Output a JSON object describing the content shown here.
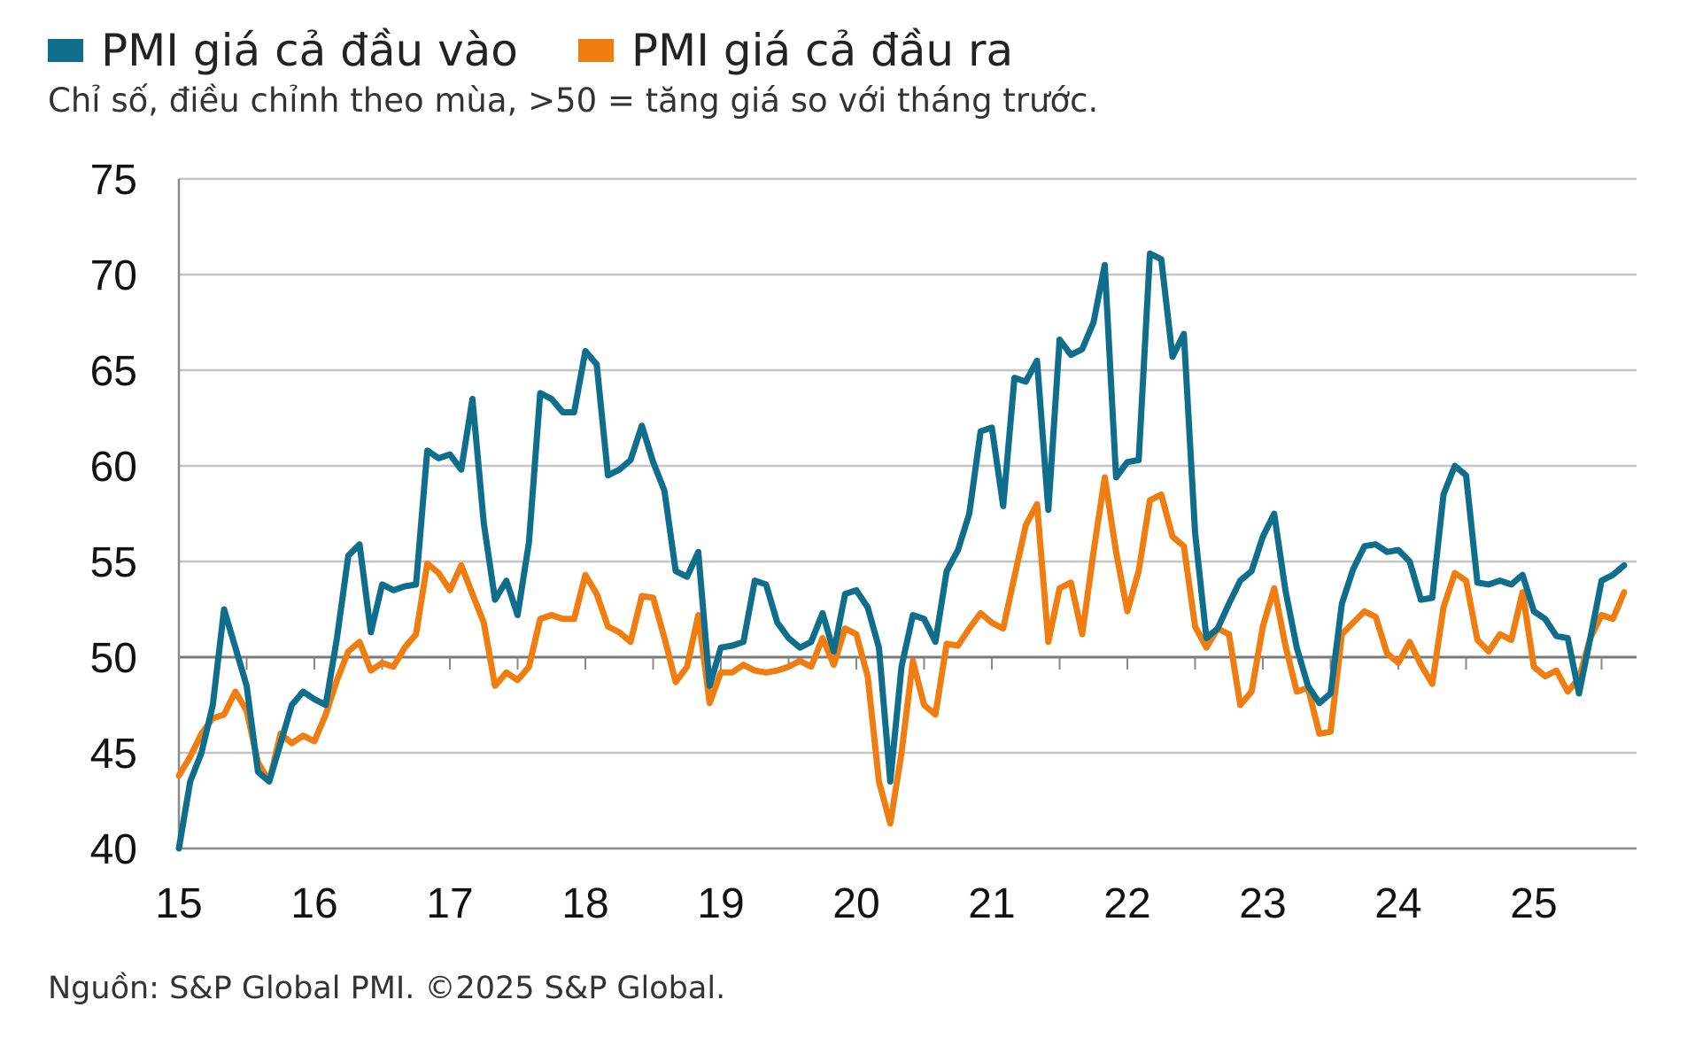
{
  "legend": [
    {
      "name": "PMI giá cả đầu vào",
      "color": "#0f6e8c"
    },
    {
      "name": "PMI giá cả đầu ra",
      "color": "#f07d12"
    }
  ],
  "subtitle": "Chỉ số, điều chỉnh theo mùa, >50 = tăng giá so với tháng trước.",
  "source": "Nguồn: S&P Global PMI. ©2025 S&P Global.",
  "chart_data": {
    "type": "line",
    "ylim": [
      40,
      75
    ],
    "yticks": [
      "40",
      "45",
      "50",
      "55",
      "60",
      "65",
      "70",
      "75"
    ],
    "xticks": [
      "15",
      "16",
      "17",
      "18",
      "19",
      "20",
      "21",
      "22",
      "23",
      "24",
      "25"
    ],
    "x_start": "2015-01",
    "grid": true,
    "reference_line": 50,
    "series": [
      {
        "name": "PMI giá cả đầu vào",
        "color": "#0f6e8c",
        "values": [
          40.0,
          43.5,
          45.0,
          47.5,
          52.5,
          50.5,
          48.5,
          44.0,
          43.5,
          45.5,
          47.5,
          48.2,
          47.8,
          47.5,
          51.0,
          55.3,
          55.9,
          51.3,
          53.8,
          53.5,
          53.7,
          53.8,
          60.8,
          60.4,
          60.6,
          59.8,
          63.5,
          57.0,
          53.0,
          54.0,
          52.2,
          56.0,
          63.8,
          63.5,
          62.8,
          62.8,
          66.0,
          65.3,
          59.5,
          59.8,
          60.3,
          62.1,
          60.2,
          58.7,
          54.5,
          54.2,
          55.5,
          48.5,
          50.5,
          50.6,
          50.8,
          54.0,
          53.8,
          51.8,
          51.0,
          50.5,
          50.8,
          52.3,
          50.3,
          53.3,
          53.5,
          52.6,
          50.5,
          43.5,
          49.5,
          52.2,
          52.0,
          50.8,
          54.5,
          55.6,
          57.5,
          61.8,
          62.0,
          57.9,
          64.6,
          64.4,
          65.5,
          57.7,
          66.6,
          65.8,
          66.1,
          67.5,
          70.5,
          59.4,
          60.2,
          60.3,
          71.1,
          70.8,
          65.7,
          66.9,
          56.5,
          51.0,
          51.5,
          52.8,
          54.0,
          54.5,
          56.3,
          57.5,
          53.5,
          50.5,
          48.5,
          47.6,
          48.1,
          52.8,
          54.6,
          55.8,
          55.9,
          55.5,
          55.6,
          55.0,
          53.0,
          53.1,
          58.5,
          60.0,
          59.5,
          53.9,
          53.8,
          54.0,
          53.8,
          54.3,
          52.4,
          52.0,
          51.1,
          51.0,
          48.1,
          51.0,
          54.0,
          54.3,
          54.8
        ]
      },
      {
        "name": "PMI giá cả đầu ra",
        "color": "#f07d12",
        "values": [
          43.8,
          44.8,
          46.0,
          46.8,
          47.0,
          48.2,
          47.2,
          44.5,
          43.5,
          46.0,
          45.5,
          45.9,
          45.6,
          47.0,
          48.8,
          50.3,
          50.8,
          49.3,
          49.7,
          49.5,
          50.5,
          51.2,
          54.9,
          54.4,
          53.5,
          54.8,
          53.3,
          51.8,
          48.5,
          49.2,
          48.8,
          49.5,
          52.0,
          52.2,
          52.0,
          52.0,
          54.3,
          53.3,
          51.6,
          51.3,
          50.8,
          53.2,
          53.1,
          51.0,
          48.7,
          49.5,
          52.2,
          47.6,
          49.2,
          49.2,
          49.6,
          49.3,
          49.2,
          49.3,
          49.5,
          49.8,
          49.5,
          51.0,
          49.6,
          51.5,
          51.2,
          49.0,
          43.5,
          41.3,
          45.0,
          49.8,
          47.5,
          47.0,
          50.7,
          50.6,
          51.5,
          52.3,
          51.8,
          51.5,
          54.2,
          56.9,
          58.0,
          50.8,
          53.6,
          53.9,
          51.2,
          55.5,
          59.4,
          55.5,
          52.4,
          54.5,
          58.2,
          58.5,
          56.3,
          55.8,
          51.6,
          50.5,
          51.5,
          51.2,
          47.5,
          48.2,
          51.6,
          53.6,
          50.6,
          48.2,
          48.4,
          46.0,
          46.1,
          51.2,
          51.8,
          52.4,
          52.1,
          50.2,
          49.7,
          50.8,
          49.6,
          48.6,
          52.6,
          54.4,
          54.0,
          50.9,
          50.3,
          51.2,
          50.9,
          53.4,
          49.5,
          49.0,
          49.3,
          48.2,
          48.9,
          51.0,
          52.2,
          52.0,
          53.4
        ]
      }
    ]
  }
}
